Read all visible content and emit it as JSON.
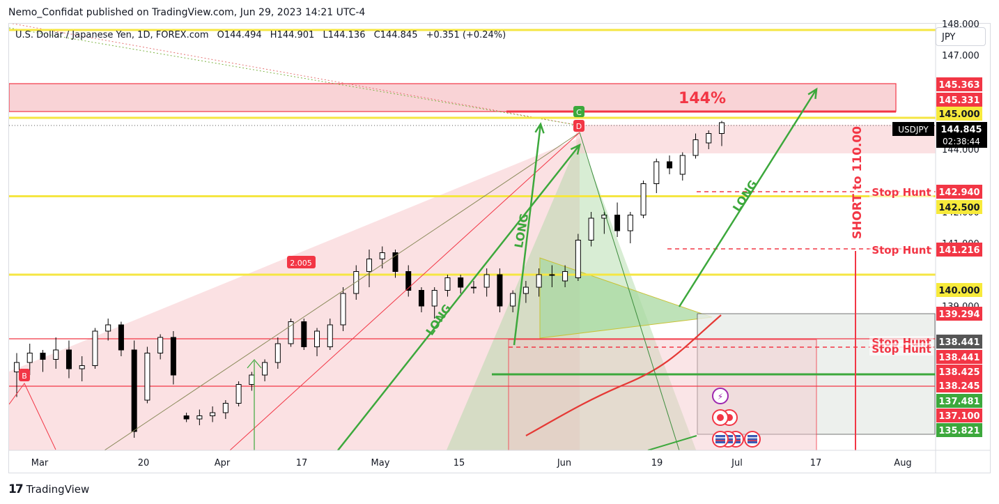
{
  "header": {
    "publisher_line": "Nemo_Confidat published on TradingView.com, Jun 29, 2023 14:21 UTC-4"
  },
  "legend": {
    "symbol": "U.S. Dollar / Japanese Yen, 1D, FOREX.com",
    "open_label": "O",
    "open": "144.494",
    "high_label": "H",
    "high": "144.901",
    "low_label": "L",
    "low": "144.136",
    "close_label": "C",
    "close": "144.845",
    "change": "+0.351 (+0.24%)"
  },
  "currency_selector": {
    "label": "JPY"
  },
  "footer": {
    "brand": "TradingView"
  },
  "colors": {
    "up_candle": "#ffffff",
    "down_candle": "#000000",
    "wick": "#000000",
    "yellow_level": "#f5e642",
    "red_level": "#f23645",
    "green": "#3ca83c",
    "red_zone": "#f7c8cc",
    "green_zone": "#a8d8a0",
    "ma_line": "#e53935"
  },
  "chart_data": {
    "type": "candlestick",
    "symbol": "USDJPY",
    "interval": "1D",
    "ylim": [
      134.4,
      148.0
    ],
    "y_ticks": [
      "139.000",
      "141.000",
      "142.000",
      "144.000",
      "147.000",
      "148.000"
    ],
    "x_ticks": [
      "Mar",
      "20",
      "Apr",
      "17",
      "May",
      "15",
      "Jun",
      "19",
      "Jul",
      "17",
      "Aug"
    ],
    "price_labels": [
      {
        "value": 145.363,
        "text": "145.363",
        "kind": "red"
      },
      {
        "value": 145.331,
        "text": "145.331",
        "kind": "red"
      },
      {
        "value": 145.0,
        "text": "145.000",
        "kind": "yellow"
      },
      {
        "value": 144.845,
        "text": "144.845",
        "kind": "current"
      },
      {
        "value": 142.94,
        "text": "142.940",
        "kind": "red"
      },
      {
        "value": 142.5,
        "text": "142.500",
        "kind": "yellow"
      },
      {
        "value": 141.216,
        "text": "141.216",
        "kind": "red"
      },
      {
        "value": 140.0,
        "text": "140.000",
        "kind": "yellow"
      },
      {
        "value": 139.294,
        "text": "139.294",
        "kind": "red"
      },
      {
        "value": 138.441,
        "text": "138.441",
        "kind": "darkgray"
      },
      {
        "value": 138.441,
        "text": "138.441",
        "kind": "red"
      },
      {
        "value": 138.425,
        "text": "138.425",
        "kind": "red"
      },
      {
        "value": 138.245,
        "text": "138.245",
        "kind": "red"
      },
      {
        "value": 137.481,
        "text": "137.481",
        "kind": "green"
      },
      {
        "value": 137.1,
        "text": "137.100",
        "kind": "red"
      },
      {
        "value": 135.821,
        "text": "135.821",
        "kind": "green"
      }
    ],
    "current_price": {
      "ticker": "USDJPY",
      "price": "144.845",
      "countdown": "02:38:44"
    },
    "annotations": {
      "target_pct": "144%",
      "long_1": "LONG",
      "long_2": "LONG",
      "long_3": "LONG",
      "short": "SHORT to 110.00",
      "stop_hunt": "Stop Hunt",
      "ratio": "2.005",
      "point_b": "B",
      "point_c": "C",
      "point_d": "D"
    },
    "candles": [
      [
        136.9,
        137.5,
        136.1,
        137.2
      ],
      [
        137.2,
        137.8,
        136.8,
        137.5
      ],
      [
        137.5,
        137.6,
        136.9,
        137.3
      ],
      [
        137.3,
        138.0,
        137.0,
        137.6
      ],
      [
        137.6,
        137.9,
        136.7,
        137.0
      ],
      [
        137.0,
        137.4,
        136.6,
        137.1
      ],
      [
        137.1,
        138.3,
        137.0,
        138.2
      ],
      [
        138.2,
        138.6,
        137.9,
        138.4
      ],
      [
        138.4,
        138.5,
        137.4,
        137.6
      ],
      [
        137.6,
        137.9,
        134.8,
        135.0
      ],
      [
        136.0,
        137.7,
        135.9,
        137.5
      ],
      [
        137.5,
        138.1,
        137.3,
        138.0
      ],
      [
        138.0,
        138.2,
        136.5,
        136.8
      ],
      [
        135.5,
        135.6,
        135.3,
        135.4
      ],
      [
        135.4,
        135.7,
        135.2,
        135.5
      ],
      [
        135.5,
        135.8,
        135.3,
        135.6
      ],
      [
        135.6,
        136.0,
        135.4,
        135.9
      ],
      [
        135.9,
        136.6,
        135.8,
        136.5
      ],
      [
        136.5,
        136.9,
        136.3,
        136.8
      ],
      [
        136.8,
        137.3,
        136.6,
        137.2
      ],
      [
        137.2,
        138.0,
        137.0,
        137.8
      ],
      [
        137.8,
        138.6,
        137.7,
        138.5
      ],
      [
        138.5,
        138.6,
        137.6,
        137.7
      ],
      [
        137.7,
        138.3,
        137.4,
        138.2
      ],
      [
        137.7,
        138.6,
        137.6,
        138.4
      ],
      [
        138.4,
        139.6,
        138.2,
        139.4
      ],
      [
        139.4,
        140.3,
        139.2,
        140.1
      ],
      [
        140.1,
        140.8,
        139.6,
        140.5
      ],
      [
        140.5,
        140.9,
        140.2,
        140.7
      ],
      [
        140.7,
        140.8,
        139.9,
        140.1
      ],
      [
        140.1,
        140.3,
        139.3,
        139.5
      ],
      [
        139.5,
        139.6,
        138.8,
        139.0
      ],
      [
        139.0,
        139.6,
        138.6,
        139.5
      ],
      [
        139.5,
        140.0,
        139.3,
        139.9
      ],
      [
        139.9,
        140.0,
        139.4,
        139.6
      ],
      [
        139.6,
        139.8,
        139.4,
        139.6
      ],
      [
        139.6,
        140.2,
        139.3,
        140.0
      ],
      [
        140.0,
        140.2,
        138.8,
        139.0
      ],
      [
        139.0,
        139.5,
        138.8,
        139.4
      ],
      [
        139.4,
        139.8,
        139.1,
        139.6
      ],
      [
        139.6,
        140.2,
        139.3,
        140.0
      ],
      [
        140.0,
        140.3,
        139.6,
        140.0
      ],
      [
        139.8,
        140.3,
        139.6,
        140.1
      ],
      [
        139.9,
        141.3,
        139.8,
        141.1
      ],
      [
        141.1,
        142.0,
        140.9,
        141.8
      ],
      [
        141.8,
        142.0,
        141.3,
        141.9
      ],
      [
        141.9,
        142.3,
        141.2,
        141.4
      ],
      [
        141.4,
        142.0,
        141.0,
        141.9
      ],
      [
        141.9,
        143.0,
        141.8,
        142.9
      ],
      [
        142.9,
        143.7,
        142.6,
        143.6
      ],
      [
        143.6,
        143.8,
        143.2,
        143.4
      ],
      [
        143.2,
        143.9,
        143.0,
        143.8
      ],
      [
        143.8,
        144.5,
        143.7,
        144.3
      ],
      [
        144.2,
        144.6,
        144.0,
        144.5
      ],
      [
        144.5,
        144.9,
        144.1,
        144.845
      ]
    ]
  }
}
